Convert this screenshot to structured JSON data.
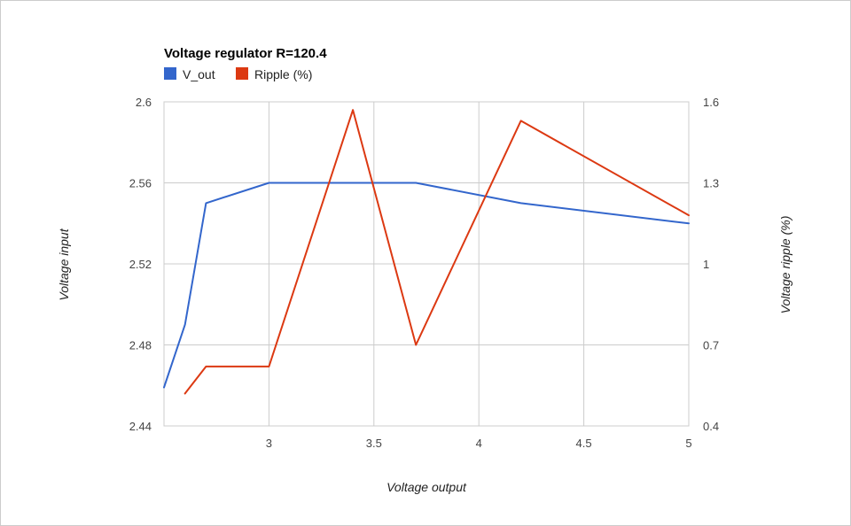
{
  "chart_data": {
    "type": "line",
    "title": "Voltage regulator R=120.4",
    "xlabel": "Voltage output",
    "ylabel_left": "Voltage input",
    "ylabel_right": "Voltage ripple (%)",
    "xlim": [
      2.5,
      5
    ],
    "x_ticks": [
      3,
      3.5,
      4,
      4.5,
      5
    ],
    "x_tick_labels": [
      "3",
      "3.5",
      "4",
      "4.5",
      "5"
    ],
    "ylim_left": [
      2.44,
      2.6
    ],
    "y_left_ticks": [
      2.44,
      2.48,
      2.52,
      2.56,
      2.6
    ],
    "y_left_tick_labels": [
      "2.44",
      "2.48",
      "2.52",
      "2.56",
      "2.6"
    ],
    "ylim_right": [
      0.4,
      1.6
    ],
    "y_right_ticks": [
      0.4,
      0.7,
      1.0,
      1.3,
      1.6
    ],
    "y_right_tick_labels": [
      "0.4",
      "0.7",
      "1",
      "1.3",
      "1.6"
    ],
    "grid": true,
    "legend_position": "top-left",
    "series": [
      {
        "name": "V_out",
        "axis": "left",
        "color": "#3366cc",
        "x": [
          2.5,
          2.6,
          2.7,
          3.0,
          3.7,
          4.2,
          5.0
        ],
        "y": [
          2.459,
          2.49,
          2.55,
          2.56,
          2.56,
          2.55,
          2.54
        ]
      },
      {
        "name": "Ripple (%)",
        "axis": "right",
        "color": "#dc3912",
        "x": [
          2.6,
          2.7,
          2.8,
          2.9,
          3.0,
          3.4,
          3.7,
          4.2,
          5.0
        ],
        "y": [
          0.52,
          0.62,
          0.62,
          0.62,
          0.62,
          1.57,
          0.7,
          1.53,
          1.18
        ]
      }
    ]
  }
}
